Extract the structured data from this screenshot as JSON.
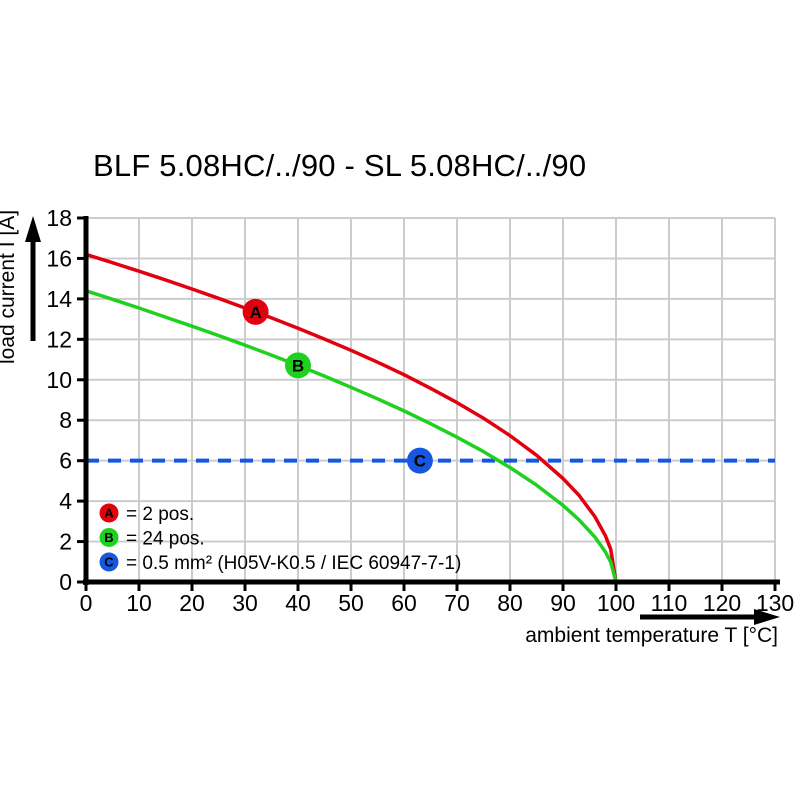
{
  "title": "BLF 5.08HC/../90 - SL 5.08HC/../90",
  "chart_data": {
    "type": "line",
    "title": "BLF 5.08HC/../90 - SL 5.08HC/../90",
    "xlabel": "ambient temperature T [°C]",
    "ylabel": "load current I [A]",
    "xlim": [
      0,
      130
    ],
    "ylim": [
      0,
      18
    ],
    "x_ticks": [
      0,
      10,
      20,
      30,
      40,
      50,
      60,
      70,
      80,
      90,
      100,
      110,
      120,
      130
    ],
    "y_ticks": [
      0,
      2,
      4,
      6,
      8,
      10,
      12,
      14,
      16,
      18
    ],
    "grid": true,
    "legend_position": "bottom-left",
    "colors": {
      "grid": "#cccccc",
      "axis": "#000000",
      "red": "#e2000f",
      "green": "#1fd11f",
      "blue": "#1557e0"
    },
    "series": [
      {
        "name": "A",
        "label": "2 pos.",
        "color": "#e2000f",
        "style": "curve",
        "x": [
          0,
          5,
          10,
          15,
          20,
          25,
          30,
          35,
          40,
          45,
          50,
          55,
          60,
          65,
          70,
          75,
          80,
          85,
          90,
          93,
          96,
          98,
          99,
          100
        ],
        "y": [
          16.2,
          15.79,
          15.37,
          14.94,
          14.49,
          14.03,
          13.55,
          13.06,
          12.55,
          12.01,
          11.46,
          10.87,
          10.25,
          9.58,
          8.87,
          8.1,
          7.24,
          6.27,
          5.12,
          4.29,
          3.24,
          2.29,
          1.62,
          0
        ],
        "marker": {
          "x": 32,
          "y": 13.36,
          "letter": "A"
        }
      },
      {
        "name": "B",
        "label": "24 pos.",
        "color": "#1fd11f",
        "style": "curve",
        "x": [
          0,
          5,
          10,
          15,
          20,
          25,
          30,
          35,
          40,
          45,
          50,
          55,
          60,
          65,
          70,
          75,
          80,
          85,
          90,
          93,
          96,
          98,
          99,
          100
        ],
        "y": [
          14.4,
          13.98,
          13.55,
          13.1,
          12.65,
          12.19,
          11.71,
          11.22,
          10.71,
          10.18,
          9.63,
          9.06,
          8.46,
          7.83,
          7.16,
          6.45,
          5.66,
          4.79,
          3.79,
          3.08,
          2.23,
          1.49,
          0.99,
          0
        ],
        "marker": {
          "x": 40,
          "y": 10.71,
          "letter": "B"
        }
      },
      {
        "name": "C",
        "label": "0.5 mm² (H05V-K0.5 / IEC 60947-7-1)",
        "color": "#1557e0",
        "style": "hline",
        "y_value": 6,
        "dashed": true,
        "marker": {
          "x": 63,
          "y": 6,
          "letter": "C"
        }
      }
    ],
    "legend": [
      {
        "letter": "A",
        "color": "#e2000f",
        "text": "= 2 pos."
      },
      {
        "letter": "B",
        "color": "#1fd11f",
        "text": "= 24 pos."
      },
      {
        "letter": "C",
        "color": "#1557e0",
        "text": "= 0.5 mm² (H05V-K0.5 / IEC 60947-7-1)"
      }
    ]
  }
}
